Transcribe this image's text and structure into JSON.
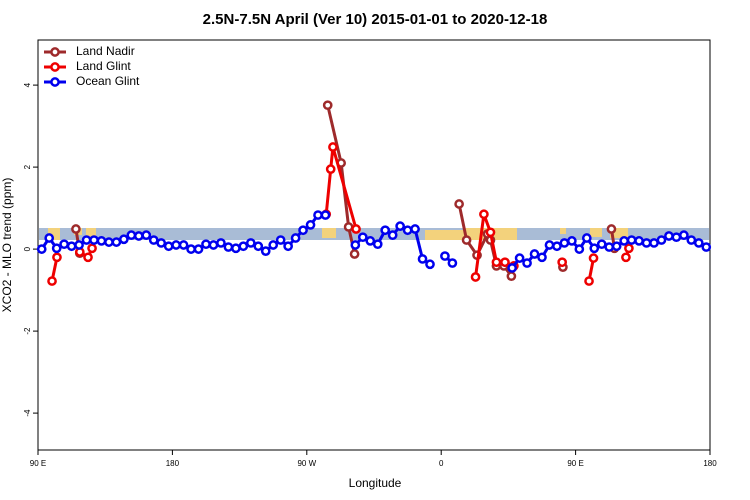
{
  "chart_data": {
    "type": "line",
    "title": "2.5N-7.5N April (Ver 10)   2015-01-01 to 2020-12-18",
    "x_label": "Longitude",
    "y_label": "XCO2 - MLO trend (ppm)",
    "xlim": [
      90,
      540
    ],
    "ylim": [
      -4.9,
      5.1
    ],
    "xticks": [
      {
        "value": 90,
        "label": "90 E"
      },
      {
        "value": 180,
        "label": "180"
      },
      {
        "value": 270,
        "label": "90 W"
      },
      {
        "value": 360,
        "label": "0"
      },
      {
        "value": 450,
        "label": "90 E"
      },
      {
        "value": 540,
        "label": "180"
      }
    ],
    "yticks": [
      -4,
      -2,
      0,
      2,
      4
    ],
    "legend": "top-left",
    "series": [
      {
        "name": "Land Nadir",
        "color": "#9e2a2b",
        "x": [
          115.4,
          118,
          200,
          284,
          293,
          298,
          302,
          340,
          372,
          377,
          384,
          391,
          393,
          397,
          402,
          407,
          425,
          441.5,
          460,
          474,
          476
        ],
        "values": [
          0.49,
          -0.1,
          null,
          3.51,
          2.1,
          0.54,
          -0.12,
          null,
          1.1,
          0.22,
          -0.15,
          0.37,
          0.22,
          -0.41,
          -0.41,
          -0.66,
          null,
          -0.44,
          null,
          0.49,
          0.02
        ]
      },
      {
        "name": "Land Glint",
        "color": "#ee0000",
        "x": [
          99.4,
          102.7,
          110,
          118,
          123.5,
          126.2,
          200,
          283,
          286,
          287.5,
          303,
          340,
          383,
          388.6,
          393,
          397,
          402.7,
          408.7,
          425,
          441,
          450,
          459,
          462,
          470,
          483.7,
          485.7
        ],
        "values": [
          -0.78,
          -0.2,
          null,
          -0.07,
          -0.2,
          0.02,
          null,
          0.85,
          1.95,
          2.49,
          0.49,
          null,
          -0.68,
          0.85,
          0.41,
          -0.32,
          -0.32,
          -0.41,
          null,
          -0.32,
          null,
          -0.78,
          -0.22,
          null,
          -0.2,
          0.02
        ]
      },
      {
        "name": "Ocean Glint",
        "color": "#0000ee",
        "x": [
          92.5,
          97.5,
          102.5,
          107.5,
          112.5,
          117.5,
          122.5,
          127.5,
          132.5,
          137.5,
          142.5,
          147.5,
          152.5,
          157.5,
          162.5,
          167.5,
          172.5,
          177.5,
          182.5,
          187.5,
          192.5,
          197.5,
          202.5,
          207.5,
          212.5,
          217.5,
          222.5,
          227.5,
          232.5,
          237.5,
          242.5,
          247.5,
          252.5,
          257.5,
          262.5,
          267.5,
          272.5,
          277.5,
          282.5,
          292.5,
          302.5,
          307.5,
          312.5,
          317.5,
          322.5,
          327.5,
          332.5,
          337.5,
          342.5,
          347.5,
          352.5,
          357.5,
          362.5,
          367.5,
          402.5,
          407.5,
          412.5,
          417.5,
          422.5,
          427.5,
          432.5,
          437.5,
          442.5,
          447.5,
          452.5,
          457.5,
          462.5,
          467.5,
          472.5,
          477.5,
          482.5,
          487.5,
          492.5,
          497.5,
          502.5,
          507.5,
          512.5,
          517.5,
          522.5,
          527.5,
          532.5,
          537.5
        ],
        "values": [
          0,
          0.27,
          0.02,
          0.12,
          0.07,
          0.1,
          0.22,
          0.22,
          0.2,
          0.17,
          0.17,
          0.24,
          0.34,
          0.32,
          0.34,
          0.22,
          0.15,
          0.07,
          0.1,
          0.1,
          0,
          0,
          0.12,
          0.1,
          0.15,
          0.05,
          0.02,
          0.07,
          0.15,
          0.07,
          -0.05,
          0.1,
          0.22,
          0.07,
          0.27,
          0.46,
          0.59,
          0.83,
          0.83,
          null,
          0.1,
          0.29,
          0.2,
          0.12,
          0.46,
          0.34,
          0.56,
          0.46,
          0.49,
          -0.24,
          -0.37,
          null,
          -0.17,
          -0.34,
          null,
          -0.46,
          -0.22,
          -0.34,
          -0.12,
          -0.2,
          0.1,
          0.07,
          0.15,
          0.2,
          0,
          0.27,
          0.02,
          0.12,
          0.05,
          0.07,
          0.2,
          0.22,
          0.2,
          0.15,
          0.15,
          0.22,
          0.32,
          0.29,
          0.34,
          0.22,
          0.15,
          0.05
        ]
      }
    ]
  }
}
